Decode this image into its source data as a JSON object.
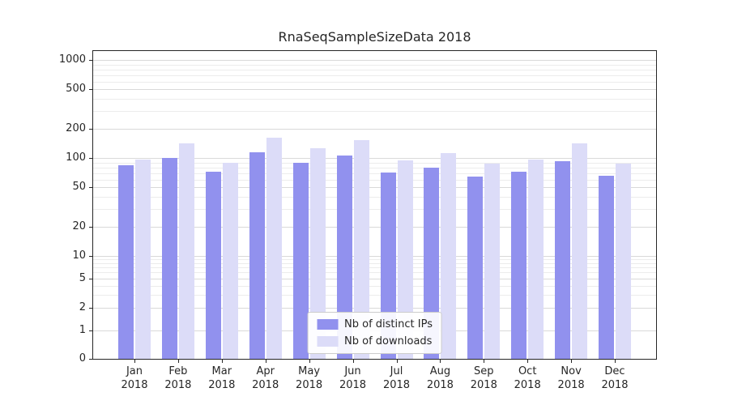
{
  "chart_data": {
    "type": "bar",
    "title": "RnaSeqSampleSizeData 2018",
    "categories": [
      "Jan",
      "Feb",
      "Mar",
      "Apr",
      "May",
      "Jun",
      "Jul",
      "Aug",
      "Sep",
      "Oct",
      "Nov",
      "Dec"
    ],
    "year": "2018",
    "yscale": "symlog",
    "yticks": [
      0,
      1,
      2,
      5,
      10,
      20,
      50,
      100,
      200,
      500,
      1000
    ],
    "ylim": [
      0,
      1300
    ],
    "grid": true,
    "legend_position": "lower center",
    "series": [
      {
        "name": "Nb of distinct IPs",
        "color": "#9191ee",
        "values": [
          85,
          100,
          72,
          115,
          90,
          105,
          71,
          80,
          65,
          72,
          93,
          66
        ]
      },
      {
        "name": "Nb of downloads",
        "color": "#dcdcf8",
        "values": [
          97,
          140,
          90,
          162,
          125,
          152,
          95,
          113,
          88,
          97,
          142,
          88
        ]
      }
    ]
  }
}
